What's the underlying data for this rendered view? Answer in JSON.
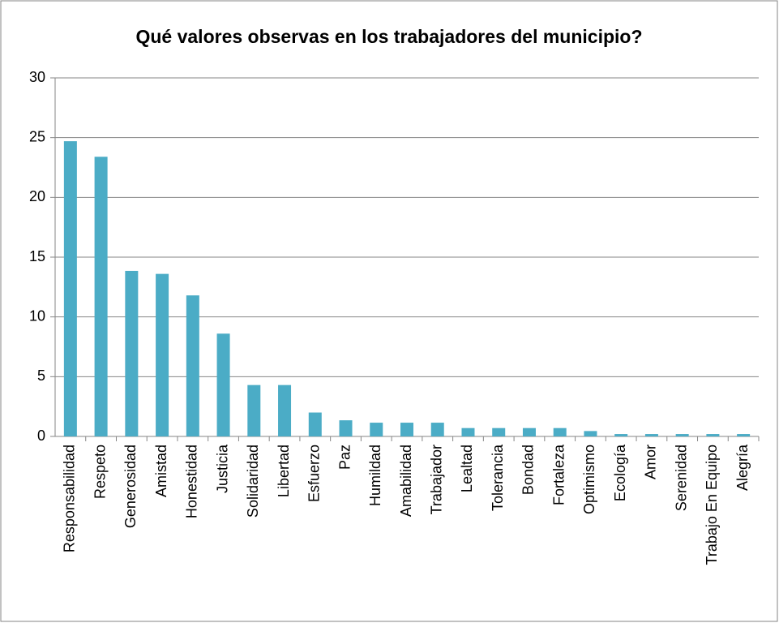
{
  "chart_data": {
    "type": "bar",
    "title": "Qué valores observas en los trabajadores del municipio?",
    "categories": [
      "Responsabilidad",
      "Respeto",
      "Generosidad",
      "Amistad",
      "Honestidad",
      "Justicia",
      "Solidaridad",
      "Libertad",
      "Esfuerzo",
      "Paz",
      "Humildad",
      "Amabilidad",
      "Trabajador",
      "Lealtad",
      "Tolerancia",
      "Bondad",
      "Fortaleza",
      "Optimismo",
      "Ecología",
      "Amor",
      "Serenidad",
      "Trabajo En Equipo",
      "Alegría"
    ],
    "values": [
      24.7,
      23.4,
      13.85,
      13.6,
      11.8,
      8.6,
      4.3,
      4.3,
      2.0,
      1.35,
      1.15,
      1.15,
      1.15,
      0.7,
      0.7,
      0.7,
      0.7,
      0.45,
      0.2,
      0.2,
      0.2,
      0.2,
      0.2
    ],
    "color": "#4bacc6",
    "ylim": [
      0,
      30
    ],
    "yticks": [
      0,
      5,
      10,
      15,
      20,
      25,
      30
    ],
    "grid": true
  }
}
